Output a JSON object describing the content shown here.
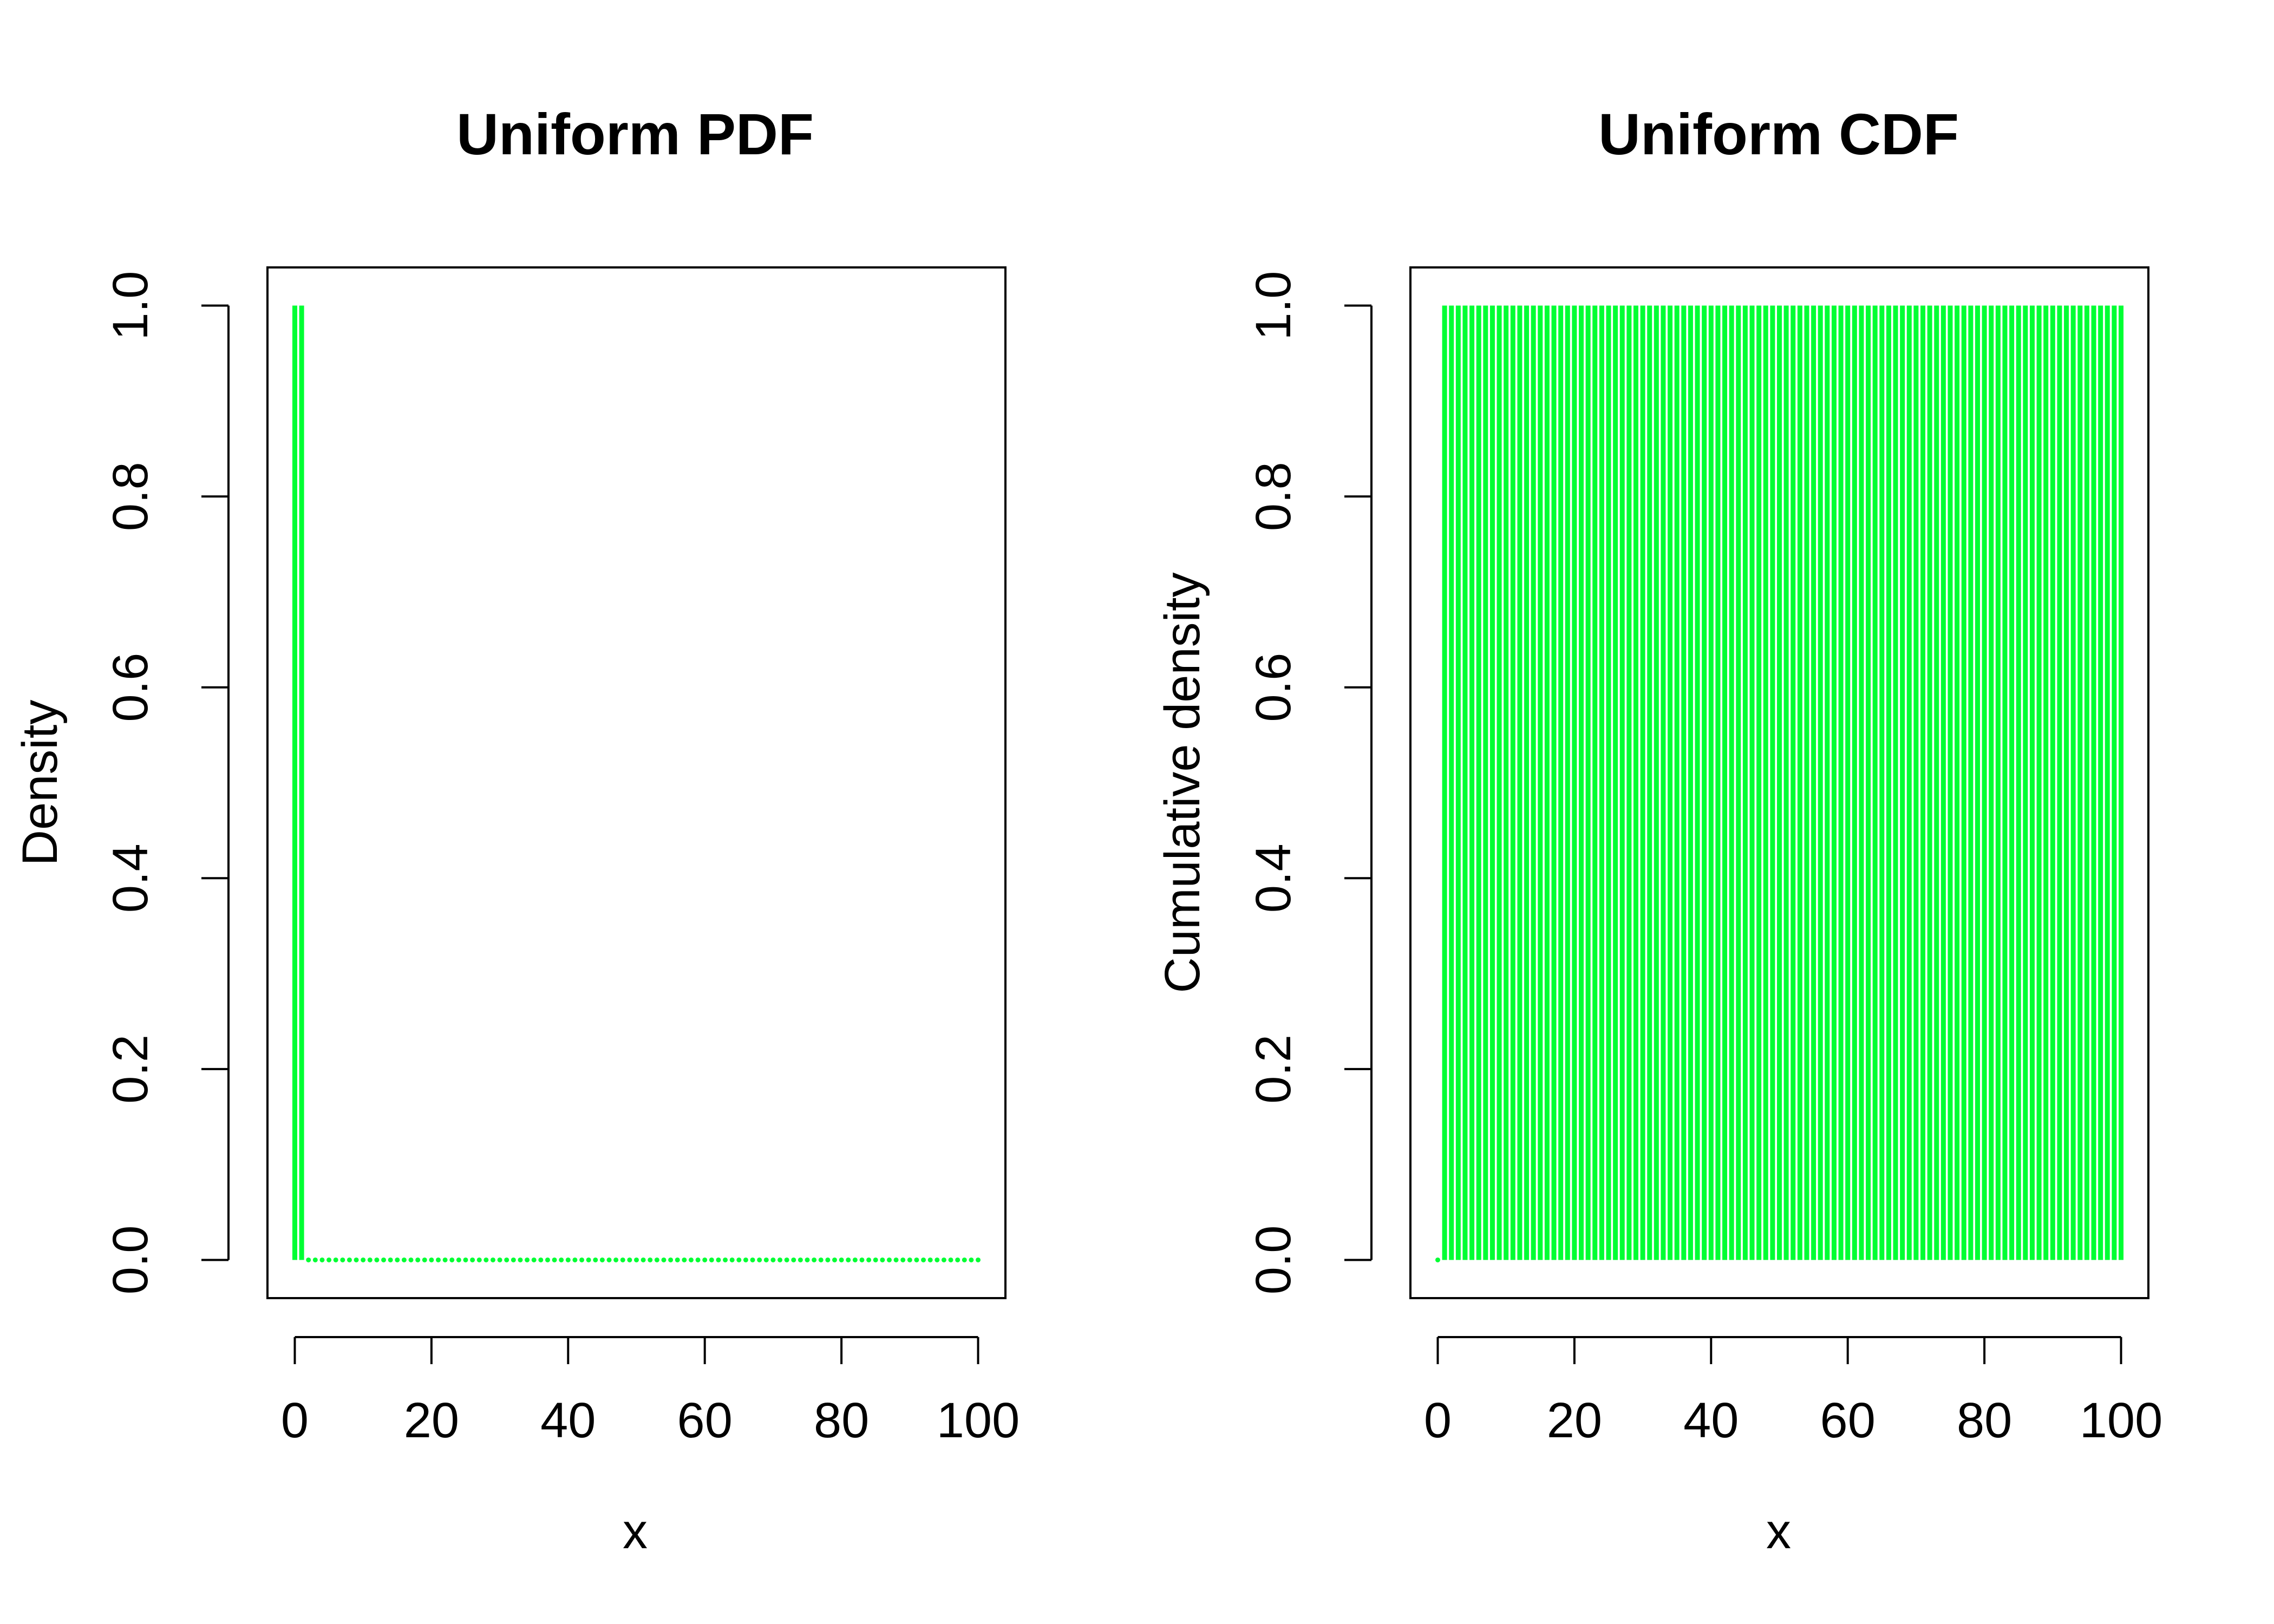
{
  "colors": {
    "series": "#00ff33",
    "axis": "#000000",
    "background": "#ffffff"
  },
  "chart_data": [
    {
      "type": "line",
      "render": "histogram-steps",
      "title": "Uniform PDF",
      "xlabel": "x",
      "ylabel": "Density",
      "xlim": [
        -4,
        104
      ],
      "ylim": [
        -0.04,
        1.04
      ],
      "xticks": [
        0,
        20,
        40,
        60,
        80,
        100
      ],
      "yticks": [
        0.0,
        0.2,
        0.4,
        0.6,
        0.8,
        1.0
      ],
      "xtick_labels": [
        "0",
        "20",
        "40",
        "60",
        "80",
        "100"
      ],
      "ytick_labels": [
        "0.0",
        "0.2",
        "0.4",
        "0.6",
        "0.8",
        "1.0"
      ],
      "grid": false,
      "series": [
        {
          "x_start": 0,
          "x_end": 100,
          "x_step": 1,
          "values_rule": "1 for x<=1, 0 otherwise"
        }
      ]
    },
    {
      "type": "line",
      "render": "histogram-steps",
      "title": "Uniform CDF",
      "xlabel": "x",
      "ylabel": "Cumulative density",
      "xlim": [
        -4,
        104
      ],
      "ylim": [
        -0.04,
        1.04
      ],
      "xticks": [
        0,
        20,
        40,
        60,
        80,
        100
      ],
      "yticks": [
        0.0,
        0.2,
        0.4,
        0.6,
        0.8,
        1.0
      ],
      "xtick_labels": [
        "0",
        "20",
        "40",
        "60",
        "80",
        "100"
      ],
      "ytick_labels": [
        "0.0",
        "0.2",
        "0.4",
        "0.6",
        "0.8",
        "1.0"
      ],
      "grid": false,
      "series": [
        {
          "x_start": 0,
          "x_end": 100,
          "x_step": 1,
          "values_rule": "0 for x=0, 1 for x>=1"
        }
      ]
    }
  ]
}
